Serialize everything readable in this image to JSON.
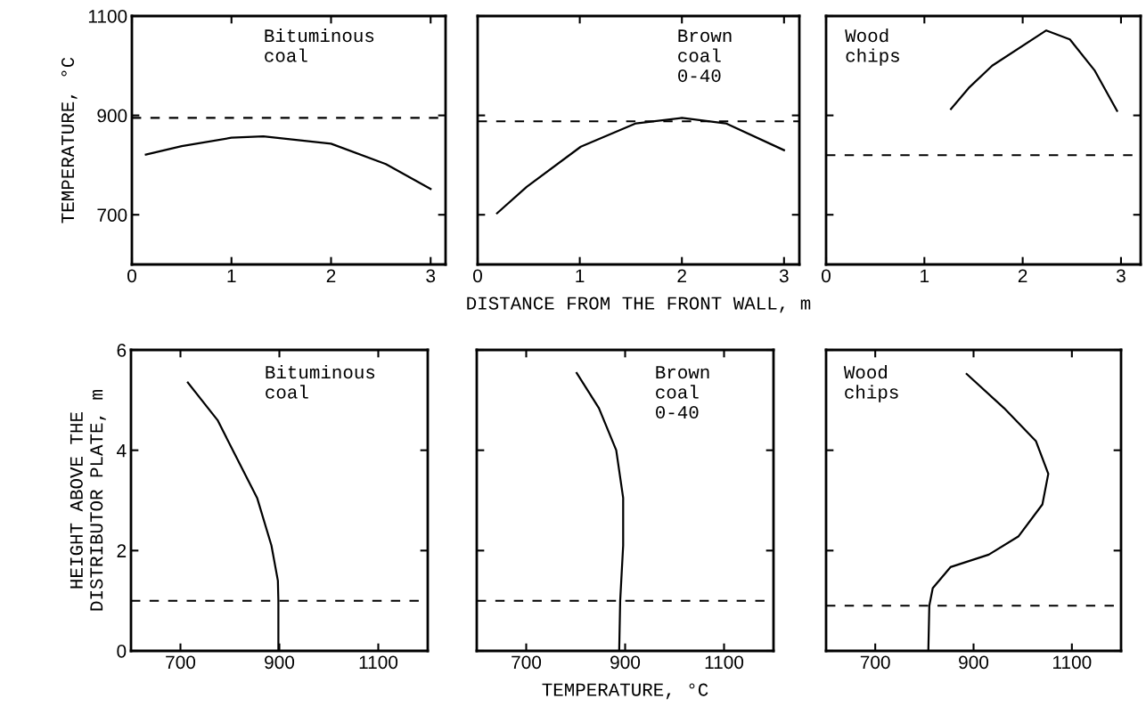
{
  "chart_data": [
    {
      "type": "line",
      "ylabel": "TEMPERATURE, °C",
      "annotations": [
        "Bituminous\ncoal"
      ],
      "xlim": [
        0,
        3.15
      ],
      "xticks": [
        0,
        1,
        2,
        3
      ],
      "ylim": [
        600,
        1100
      ],
      "yticks": [
        700,
        900,
        1100
      ],
      "grid": false,
      "series": [
        {
          "color": "#000000",
          "x": [
            0.14,
            0.5,
            1.0,
            1.32,
            2.0,
            2.55,
            3.0
          ],
          "values": [
            821,
            838,
            855,
            858,
            843,
            802,
            752
          ]
        }
      ],
      "ref_lines": [
        {
          "axis": "y",
          "value": 895,
          "color": "#000000",
          "line_style": "dashed"
        }
      ]
    },
    {
      "type": "line",
      "xlabel": "DISTANCE FROM THE FRONT WALL, m",
      "annotations": [
        "Brown\ncoal\n0-40"
      ],
      "xlim": [
        0,
        3.15
      ],
      "xticks": [
        0,
        1,
        2,
        3
      ],
      "ylim": [
        600,
        1100
      ],
      "yticks": [
        700,
        900,
        1100
      ],
      "tick_labels": "x",
      "grid": false,
      "series": [
        {
          "color": "#000000",
          "x": [
            0.19,
            0.48,
            1.01,
            1.55,
            2.0,
            2.43,
            3.0
          ],
          "values": [
            703,
            756,
            837,
            884,
            895,
            884,
            830
          ]
        }
      ],
      "ref_lines": [
        {
          "axis": "y",
          "value": 888,
          "color": "#000000",
          "line_style": "dashed"
        }
      ]
    },
    {
      "type": "line",
      "annotations": [
        "Wood\nchips"
      ],
      "xlim": [
        0,
        3.2
      ],
      "xticks": [
        0,
        1,
        2,
        3
      ],
      "ylim": [
        600,
        1100
      ],
      "yticks": [
        700,
        900,
        1100
      ],
      "tick_labels": "x",
      "grid": false,
      "series": [
        {
          "color": "#000000",
          "x": [
            1.27,
            1.45,
            1.69,
            2.24,
            2.48,
            2.73,
            2.96
          ],
          "values": [
            913,
            955,
            1000,
            1071,
            1053,
            991,
            909
          ]
        }
      ],
      "ref_lines": [
        {
          "axis": "y",
          "value": 820,
          "color": "#000000",
          "line_style": "dashed"
        }
      ]
    },
    {
      "type": "line",
      "ylabel": "HEIGHT ABOVE THE\nDISTRIBUTOR PLATE, m",
      "annotations": [
        "Bituminous\ncoal"
      ],
      "xlim": [
        600,
        1200
      ],
      "xticks": [
        700,
        900,
        1100
      ],
      "ylim": [
        0,
        6
      ],
      "yticks": [
        0,
        2,
        4,
        6
      ],
      "grid": false,
      "series": [
        {
          "color": "#000000",
          "x": [
            715,
            775,
            811,
            855,
            884,
            897,
            898,
            898
          ],
          "values": [
            5.35,
            4.6,
            3.9,
            3.05,
            2.1,
            1.4,
            1.0,
            0
          ]
        }
      ],
      "ref_lines": [
        {
          "axis": "y",
          "value": 1.0,
          "color": "#000000",
          "line_style": "dashed"
        }
      ]
    },
    {
      "type": "line",
      "xlabel": "TEMPERATURE, °C",
      "annotations": [
        "Brown\ncoal\n0-40"
      ],
      "xlim": [
        600,
        1200
      ],
      "xticks": [
        700,
        900,
        1100
      ],
      "ylim": [
        0,
        6
      ],
      "yticks": [
        0,
        2,
        4,
        6
      ],
      "tick_labels": "x",
      "grid": false,
      "series": [
        {
          "color": "#000000",
          "x": [
            802,
            847,
            882,
            896,
            896,
            890,
            888
          ],
          "values": [
            5.54,
            4.84,
            4.0,
            3.05,
            2.1,
            1.0,
            0
          ]
        }
      ],
      "ref_lines": [
        {
          "axis": "y",
          "value": 1.0,
          "color": "#000000",
          "line_style": "dashed"
        }
      ]
    },
    {
      "type": "line",
      "annotations": [
        "Wood\nchips"
      ],
      "xlim": [
        600,
        1200
      ],
      "xticks": [
        700,
        900,
        1100
      ],
      "ylim": [
        0,
        6
      ],
      "yticks": [
        0,
        2,
        4,
        6
      ],
      "tick_labels": "x",
      "grid": false,
      "series": [
        {
          "color": "#000000",
          "x": [
            886,
            962,
            1027,
            1052,
            1040,
            991,
            931,
            853,
            817,
            810,
            808
          ],
          "values": [
            5.52,
            4.84,
            4.18,
            3.53,
            2.92,
            2.28,
            1.92,
            1.67,
            1.25,
            0.9,
            0
          ]
        }
      ],
      "ref_lines": [
        {
          "axis": "y",
          "value": 0.9,
          "color": "#000000",
          "line_style": "dashed"
        }
      ]
    }
  ]
}
